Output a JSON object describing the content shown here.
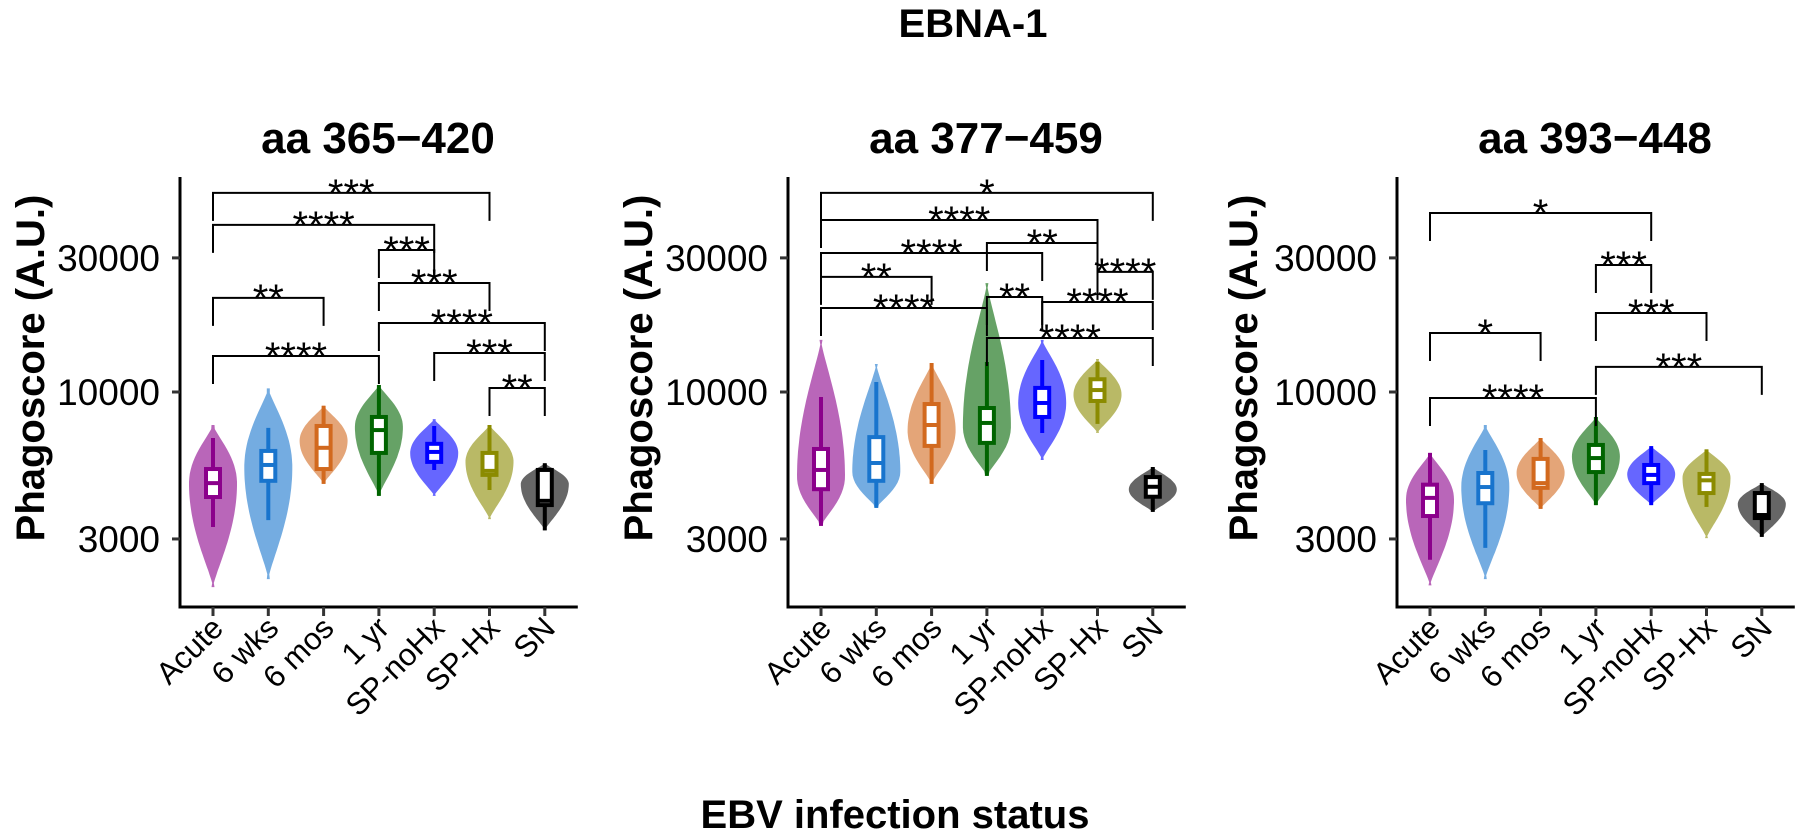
{
  "chart_data": {
    "type": "violin",
    "title": "EBNA-1",
    "xlabel": "EBV infection status",
    "ylabel": "Phagoscore (A.U.)",
    "yscale": "log10",
    "ylim": [
      1718,
      58200
    ],
    "yticks": [
      3000,
      10000,
      30000
    ],
    "ytick_labels": [
      "3000",
      "10000",
      "30000"
    ],
    "grid": false,
    "categories": [
      "Acute",
      "6 wks",
      "6 mos",
      "1 yr",
      "SP-noHx",
      "SP-Hx",
      "SN"
    ],
    "colors": [
      "#8B008B",
      "#1874CD",
      "#D2691E",
      "#006400",
      "#0000FF",
      "#8B8B00",
      "#000000"
    ],
    "panels": [
      {
        "title": "aa 365−420",
        "groups": [
          {
            "min": 2023,
            "max": 7630,
            "wlo": 3310,
            "whi": 6860,
            "q1": 4230,
            "median": 4740,
            "q3": 5320,
            "mode": 4740
          },
          {
            "min": 2160,
            "max": 10300,
            "wlo": 3500,
            "whi": 7450,
            "q1": 4830,
            "median": 5500,
            "q3": 6170,
            "mode": 5400
          },
          {
            "min": 4710,
            "max": 8930,
            "wlo": 4710,
            "whi": 8930,
            "q1": 5320,
            "median": 6330,
            "q3": 7570,
            "mode": 6700
          },
          {
            "min": 4270,
            "max": 10590,
            "wlo": 4270,
            "whi": 10590,
            "q1": 6070,
            "median": 7320,
            "q3": 8150,
            "mode": 7500
          },
          {
            "min": 4270,
            "max": 8010,
            "wlo": 5280,
            "whi": 7570,
            "q1": 5640,
            "median": 6120,
            "q3": 6540,
            "mode": 6070
          },
          {
            "min": 3530,
            "max": 7630,
            "wlo": 4480,
            "whi": 7630,
            "q1": 5070,
            "median": 5240,
            "q3": 6070,
            "mode": 5650
          },
          {
            "min": 3220,
            "max": 5580,
            "wlo": 3220,
            "whi": 5580,
            "q1": 3960,
            "median": 4100,
            "q3": 5280,
            "mode": 4700
          }
        ],
        "comparisons": [
          {
            "from": "Acute",
            "to": "SP-Hx",
            "label": "***",
            "y": 51100
          },
          {
            "from": "Acute",
            "to": "SP-noHx",
            "label": "****",
            "y": 39300
          },
          {
            "from": "1 yr",
            "to": "SP-noHx",
            "label": "***",
            "y": 32000
          },
          {
            "from": "1 yr",
            "to": "SP-Hx",
            "label": "***",
            "y": 24430
          },
          {
            "from": "Acute",
            "to": "6 mos",
            "label": "**",
            "y": 21610
          },
          {
            "from": "1 yr",
            "to": "SN",
            "label": "****",
            "y": 17600
          },
          {
            "from": "Acute",
            "to": "1 yr",
            "label": "****",
            "y": 13430
          },
          {
            "from": "SP-noHx",
            "to": "SN",
            "label": "***",
            "y": 13760
          },
          {
            "from": "SP-Hx",
            "to": "SN",
            "label": "**",
            "y": 10330
          }
        ]
      },
      {
        "title": "aa 377−459",
        "groups": [
          {
            "min": 3340,
            "max": 15320,
            "wlo": 3340,
            "whi": 9600,
            "q1": 4510,
            "median": 5280,
            "q3": 6270,
            "mode": 5000
          },
          {
            "min": 3870,
            "max": 12580,
            "wlo": 3870,
            "whi": 10850,
            "q1": 4830,
            "median": 5590,
            "q3": 6910,
            "mode": 5200
          },
          {
            "min": 4710,
            "max": 12680,
            "wlo": 4710,
            "whi": 12680,
            "q1": 6430,
            "median": 7630,
            "q3": 9060,
            "mode": 7300
          },
          {
            "min": 5030,
            "max": 24400,
            "wlo": 5030,
            "whi": 12790,
            "q1": 6590,
            "median": 7760,
            "q3": 8770,
            "mode": 7500
          },
          {
            "min": 5730,
            "max": 15320,
            "wlo": 7150,
            "whi": 13000,
            "q1": 8150,
            "median": 9140,
            "q3": 10340,
            "mode": 9140
          },
          {
            "min": 7150,
            "max": 13100,
            "wlo": 7700,
            "whi": 12800,
            "q1": 9290,
            "median": 10160,
            "q3": 11100,
            "mode": 9800
          },
          {
            "min": 3744,
            "max": 5410,
            "wlo": 3744,
            "whi": 5410,
            "q1": 4240,
            "median": 4600,
            "q3": 4980,
            "mode": 4500
          }
        ],
        "comparisons": [
          {
            "from": "Acute",
            "to": "SN",
            "label": "*",
            "y": 51100
          },
          {
            "from": "Acute",
            "to": "SP-Hx",
            "label": "****",
            "y": 40930
          },
          {
            "from": "1 yr",
            "to": "SP-Hx",
            "label": "**",
            "y": 33900
          },
          {
            "from": "Acute",
            "to": "SP-noHx",
            "label": "****",
            "y": 31220
          },
          {
            "from": "SP-Hx",
            "to": "SN",
            "label": "****",
            "y": 26740
          },
          {
            "from": "Acute",
            "to": "6 mos",
            "label": "**",
            "y": 25670
          },
          {
            "from": "1 yr",
            "to": "SP-noHx",
            "label": "**",
            "y": 21780
          },
          {
            "from": "SP-noHx",
            "to": "SN",
            "label": "****",
            "y": 20900
          },
          {
            "from": "Acute",
            "to": "1 yr",
            "label": "****",
            "y": 19900
          },
          {
            "from": "1 yr",
            "to": "SN",
            "label": "****",
            "y": 15570
          }
        ]
      },
      {
        "title": "aa 393−448",
        "groups": [
          {
            "min": 2050,
            "max": 6070,
            "wlo": 2530,
            "whi": 6070,
            "q1": 3620,
            "median": 4200,
            "q3": 4680,
            "mode": 4150
          },
          {
            "min": 2160,
            "max": 7630,
            "wlo": 2790,
            "whi": 6220,
            "q1": 4020,
            "median": 4590,
            "q3": 5150,
            "mode": 4590
          },
          {
            "min": 3840,
            "max": 6860,
            "wlo": 3840,
            "whi": 6860,
            "q1": 4560,
            "median": 4740,
            "q3": 5780,
            "mode": 5150
          },
          {
            "min": 3960,
            "max": 8150,
            "wlo": 3960,
            "whi": 8150,
            "q1": 5190,
            "median": 5820,
            "q3": 6480,
            "mode": 5900
          },
          {
            "min": 3960,
            "max": 6420,
            "wlo": 3960,
            "whi": 6420,
            "q1": 4740,
            "median": 5070,
            "q3": 5500,
            "mode": 5100
          },
          {
            "min": 3020,
            "max": 6250,
            "wlo": 3900,
            "whi": 6250,
            "q1": 4370,
            "median": 4850,
            "q3": 5110,
            "mode": 4950
          },
          {
            "min": 3050,
            "max": 4740,
            "wlo": 3050,
            "whi": 4740,
            "q1": 3560,
            "median": 3650,
            "q3": 4370,
            "mode": 4000
          }
        ],
        "comparisons": [
          {
            "from": "Acute",
            "to": "SP-noHx",
            "label": "*",
            "y": 43350
          },
          {
            "from": "1 yr",
            "to": "SP-noHx",
            "label": "***",
            "y": 28310
          },
          {
            "from": "1 yr",
            "to": "SP-Hx",
            "label": "***",
            "y": 19100
          },
          {
            "from": "Acute",
            "to": "6 mos",
            "label": "*",
            "y": 16220
          },
          {
            "from": "1 yr",
            "to": "SN",
            "label": "***",
            "y": 12280
          },
          {
            "from": "Acute",
            "to": "1 yr",
            "label": "****",
            "y": 9520
          }
        ]
      }
    ]
  }
}
